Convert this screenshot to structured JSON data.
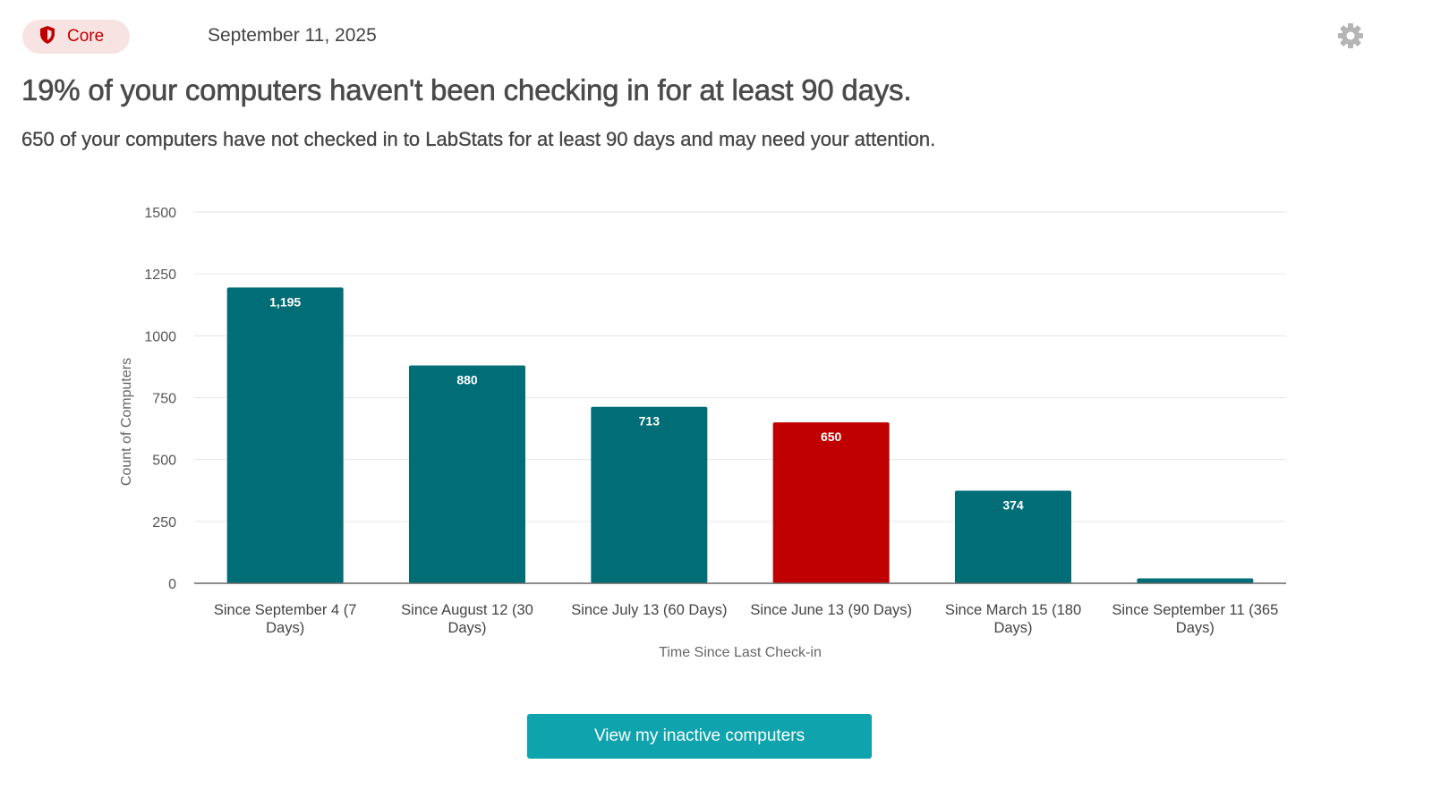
{
  "header": {
    "badge_label": "Core",
    "date": "September 11, 2025"
  },
  "headline": "19% of your computers haven't been checking in for at least 90 days.",
  "subline": "650 of your computers have not checked in to LabStats for at least 90 days and may need your attention.",
  "chart_data": {
    "type": "bar",
    "title": "",
    "xlabel": "Time Since Last Check-in",
    "ylabel": "Count of Computers",
    "ylim": [
      0,
      1500
    ],
    "yticks": [
      0,
      250,
      500,
      750,
      1000,
      1250,
      1500
    ],
    "grid": true,
    "categories": [
      [
        "Since September 4 (7",
        "Days)"
      ],
      [
        "Since August 12 (30",
        "Days)"
      ],
      [
        "Since July 13 (60 Days)"
      ],
      [
        "Since June 13 (90 Days)"
      ],
      [
        "Since March 15 (180",
        "Days)"
      ],
      [
        "Since September 11 (365",
        "Days)"
      ]
    ],
    "values": [
      1195,
      880,
      713,
      650,
      374,
      20
    ],
    "value_labels": [
      "1,195",
      "880",
      "713",
      "650",
      "374",
      ""
    ],
    "highlight_index": 3,
    "colors": {
      "bar": "#006d77",
      "highlight": "#c00000",
      "grid": "#e6e6e6",
      "axis": "#666666"
    }
  },
  "cta": {
    "label": "View my inactive computers"
  },
  "colors": {
    "brand_red": "#c00000",
    "accent": "#0fa3ad"
  },
  "icons": {
    "badge": "shield-icon",
    "settings": "gear-icon"
  }
}
